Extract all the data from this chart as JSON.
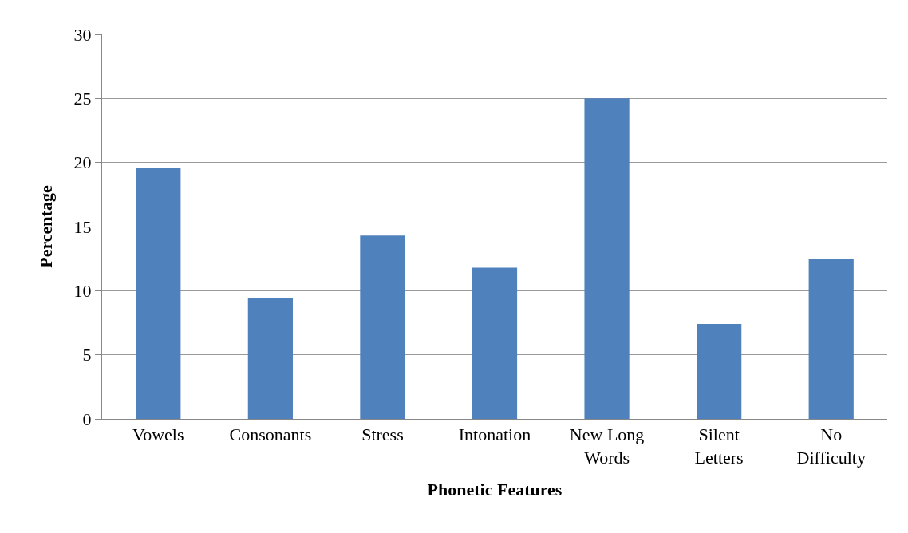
{
  "chart_data": {
    "type": "bar",
    "xlabel": "Phonetic Features",
    "ylabel": "Percentage",
    "categories": [
      "Vowels",
      "Consonants",
      "Stress",
      "Intonation",
      "New Long Words",
      "Silent Letters",
      "No Difficulty"
    ],
    "values": [
      19.6,
      9.4,
      14.3,
      11.8,
      25.0,
      7.4,
      12.5
    ],
    "color": "#4f81bd",
    "ylim": [
      0,
      30
    ],
    "yticks": [
      0,
      5,
      10,
      15,
      20,
      25,
      30
    ],
    "grid": "y"
  }
}
